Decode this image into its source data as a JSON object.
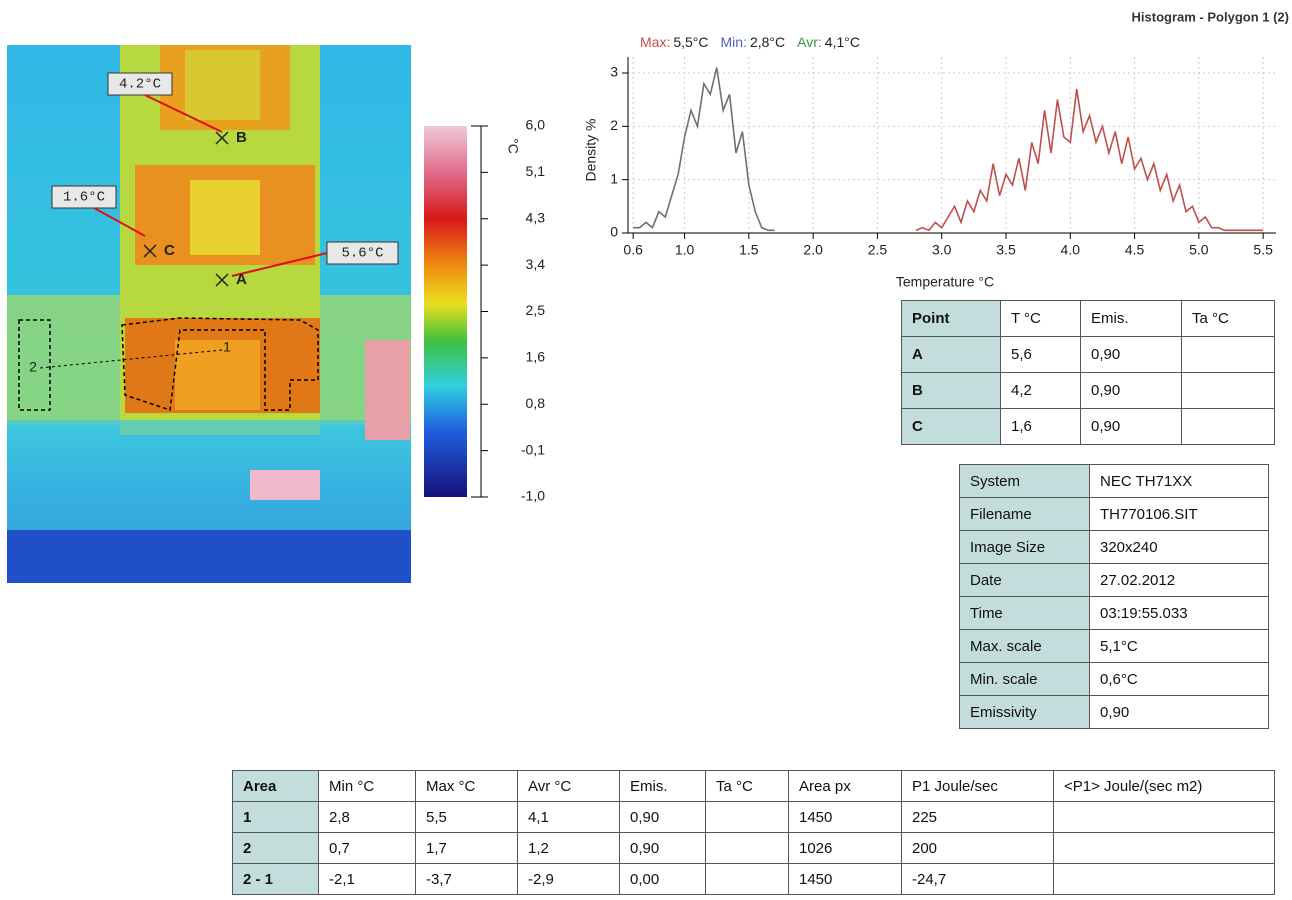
{
  "report_title": "Histogram - Polygon 1 (2)",
  "image": {
    "callouts": [
      "4.2°C",
      "1.6°C",
      "5.6°C"
    ],
    "points": [
      "A",
      "B",
      "C"
    ],
    "regions": [
      "1",
      "2"
    ]
  },
  "scale": {
    "unit": "°C",
    "labels": [
      "6,0",
      "5,1",
      "4,3",
      "3,4",
      "2,5",
      "1,6",
      "0,8",
      "-0,1",
      "-1,0"
    ]
  },
  "chart_data": {
    "type": "line",
    "stats": [
      {
        "label": "Max:",
        "text": "5,5°C",
        "color": "#c0504d"
      },
      {
        "label": "Min:",
        "text": "2,8°C",
        "color": "#4f5fc0"
      },
      {
        "label": "Avr:",
        "text": "4,1°C",
        "color": "#3a9a3a"
      }
    ],
    "x_label": "Temperature °C",
    "y_label": "Density %",
    "xlim": [
      0.56,
      5.6
    ],
    "ylim": [
      0,
      3.3
    ],
    "xticks": [
      0.6,
      {
        "value": 1,
        "label": "1.0"
      },
      1.5,
      {
        "value": 2,
        "label": "2.0"
      },
      2.5,
      {
        "value": 3,
        "label": "3.0"
      },
      3.5,
      {
        "value": 4,
        "label": "4.0"
      },
      4.5,
      {
        "value": 5,
        "label": "5.0"
      },
      5.5
    ],
    "yticks": [
      0,
      1,
      2,
      3
    ],
    "grid": true,
    "series": [
      {
        "color": "#707070",
        "x": [
          0.6,
          0.65,
          0.7,
          0.75,
          0.8,
          0.85,
          0.9,
          0.95,
          1.0,
          1.05,
          1.1,
          1.15,
          1.2,
          1.25,
          1.3,
          1.35,
          1.4,
          1.45,
          1.5,
          1.55,
          1.6,
          1.65,
          1.7
        ],
        "values": [
          0.1,
          0.1,
          0.2,
          0.1,
          0.4,
          0.3,
          0.7,
          1.1,
          1.8,
          2.3,
          2.0,
          2.8,
          2.6,
          3.1,
          2.3,
          2.6,
          1.5,
          1.9,
          0.9,
          0.4,
          0.1,
          0.05,
          0.05
        ]
      },
      {
        "color": "#c0504d",
        "x": [
          2.8,
          2.85,
          2.9,
          2.95,
          3.0,
          3.05,
          3.1,
          3.15,
          3.2,
          3.25,
          3.3,
          3.35,
          3.4,
          3.45,
          3.5,
          3.55,
          3.6,
          3.65,
          3.7,
          3.75,
          3.8,
          3.85,
          3.9,
          3.95,
          4.0,
          4.05,
          4.1,
          4.15,
          4.2,
          4.25,
          4.3,
          4.35,
          4.4,
          4.45,
          4.5,
          4.55,
          4.6,
          4.65,
          4.7,
          4.75,
          4.8,
          4.85,
          4.9,
          4.95,
          5.0,
          5.05,
          5.1,
          5.15,
          5.2,
          5.25,
          5.3,
          5.35,
          5.4,
          5.45,
          5.5
        ],
        "values": [
          0.05,
          0.1,
          0.05,
          0.2,
          0.1,
          0.3,
          0.5,
          0.2,
          0.6,
          0.4,
          0.8,
          0.6,
          1.3,
          0.7,
          1.1,
          0.9,
          1.4,
          0.8,
          1.7,
          1.3,
          2.3,
          1.5,
          2.5,
          1.8,
          1.7,
          2.7,
          1.9,
          2.2,
          1.7,
          2.0,
          1.5,
          1.9,
          1.3,
          1.8,
          1.2,
          1.4,
          1.0,
          1.3,
          0.8,
          1.1,
          0.6,
          0.9,
          0.4,
          0.5,
          0.2,
          0.3,
          0.1,
          0.1,
          0.05,
          0.05,
          0.05,
          0.05,
          0.05,
          0.05,
          0.05
        ]
      }
    ]
  },
  "point_table": {
    "header": [
      "Point",
      "T °C",
      "Emis.",
      "Ta °C"
    ],
    "rows": [
      [
        "A",
        "5,6",
        "0,90",
        null
      ],
      [
        "B",
        "4,2",
        "0,90",
        null
      ],
      [
        "C",
        "1,6",
        "0,90",
        null
      ]
    ]
  },
  "info_table": {
    "rows": [
      [
        "System",
        "NEC TH71XX"
      ],
      [
        "Filename",
        "TH770106.SIT"
      ],
      [
        "Image Size",
        "320x240"
      ],
      [
        "Date",
        "27.02.2012"
      ],
      [
        "Time",
        "03:19:55.033"
      ],
      [
        "Max. scale",
        "5,1°C"
      ],
      [
        "Min. scale",
        "0,6°C"
      ],
      [
        "Emissivity",
        "0,90"
      ]
    ]
  },
  "area_table": {
    "header": [
      "Area",
      "Min °C",
      "Max °C",
      "Avr °C",
      "Emis.",
      "Ta °C",
      "Area px",
      "P1 Joule/sec",
      "<P1> Joule/(sec m2)"
    ],
    "rows": [
      [
        "1",
        "2,8",
        "5,5",
        "4,1",
        "0,90",
        null,
        "1450",
        "225",
        null
      ],
      [
        "2",
        "0,7",
        "1,7",
        "1,2",
        "0,90",
        null,
        "1026",
        "200",
        null
      ],
      [
        "2 - 1",
        "-2,1",
        "-3,7",
        "-2,9",
        "0,00",
        null,
        "1450",
        "-24,7",
        null
      ]
    ]
  }
}
